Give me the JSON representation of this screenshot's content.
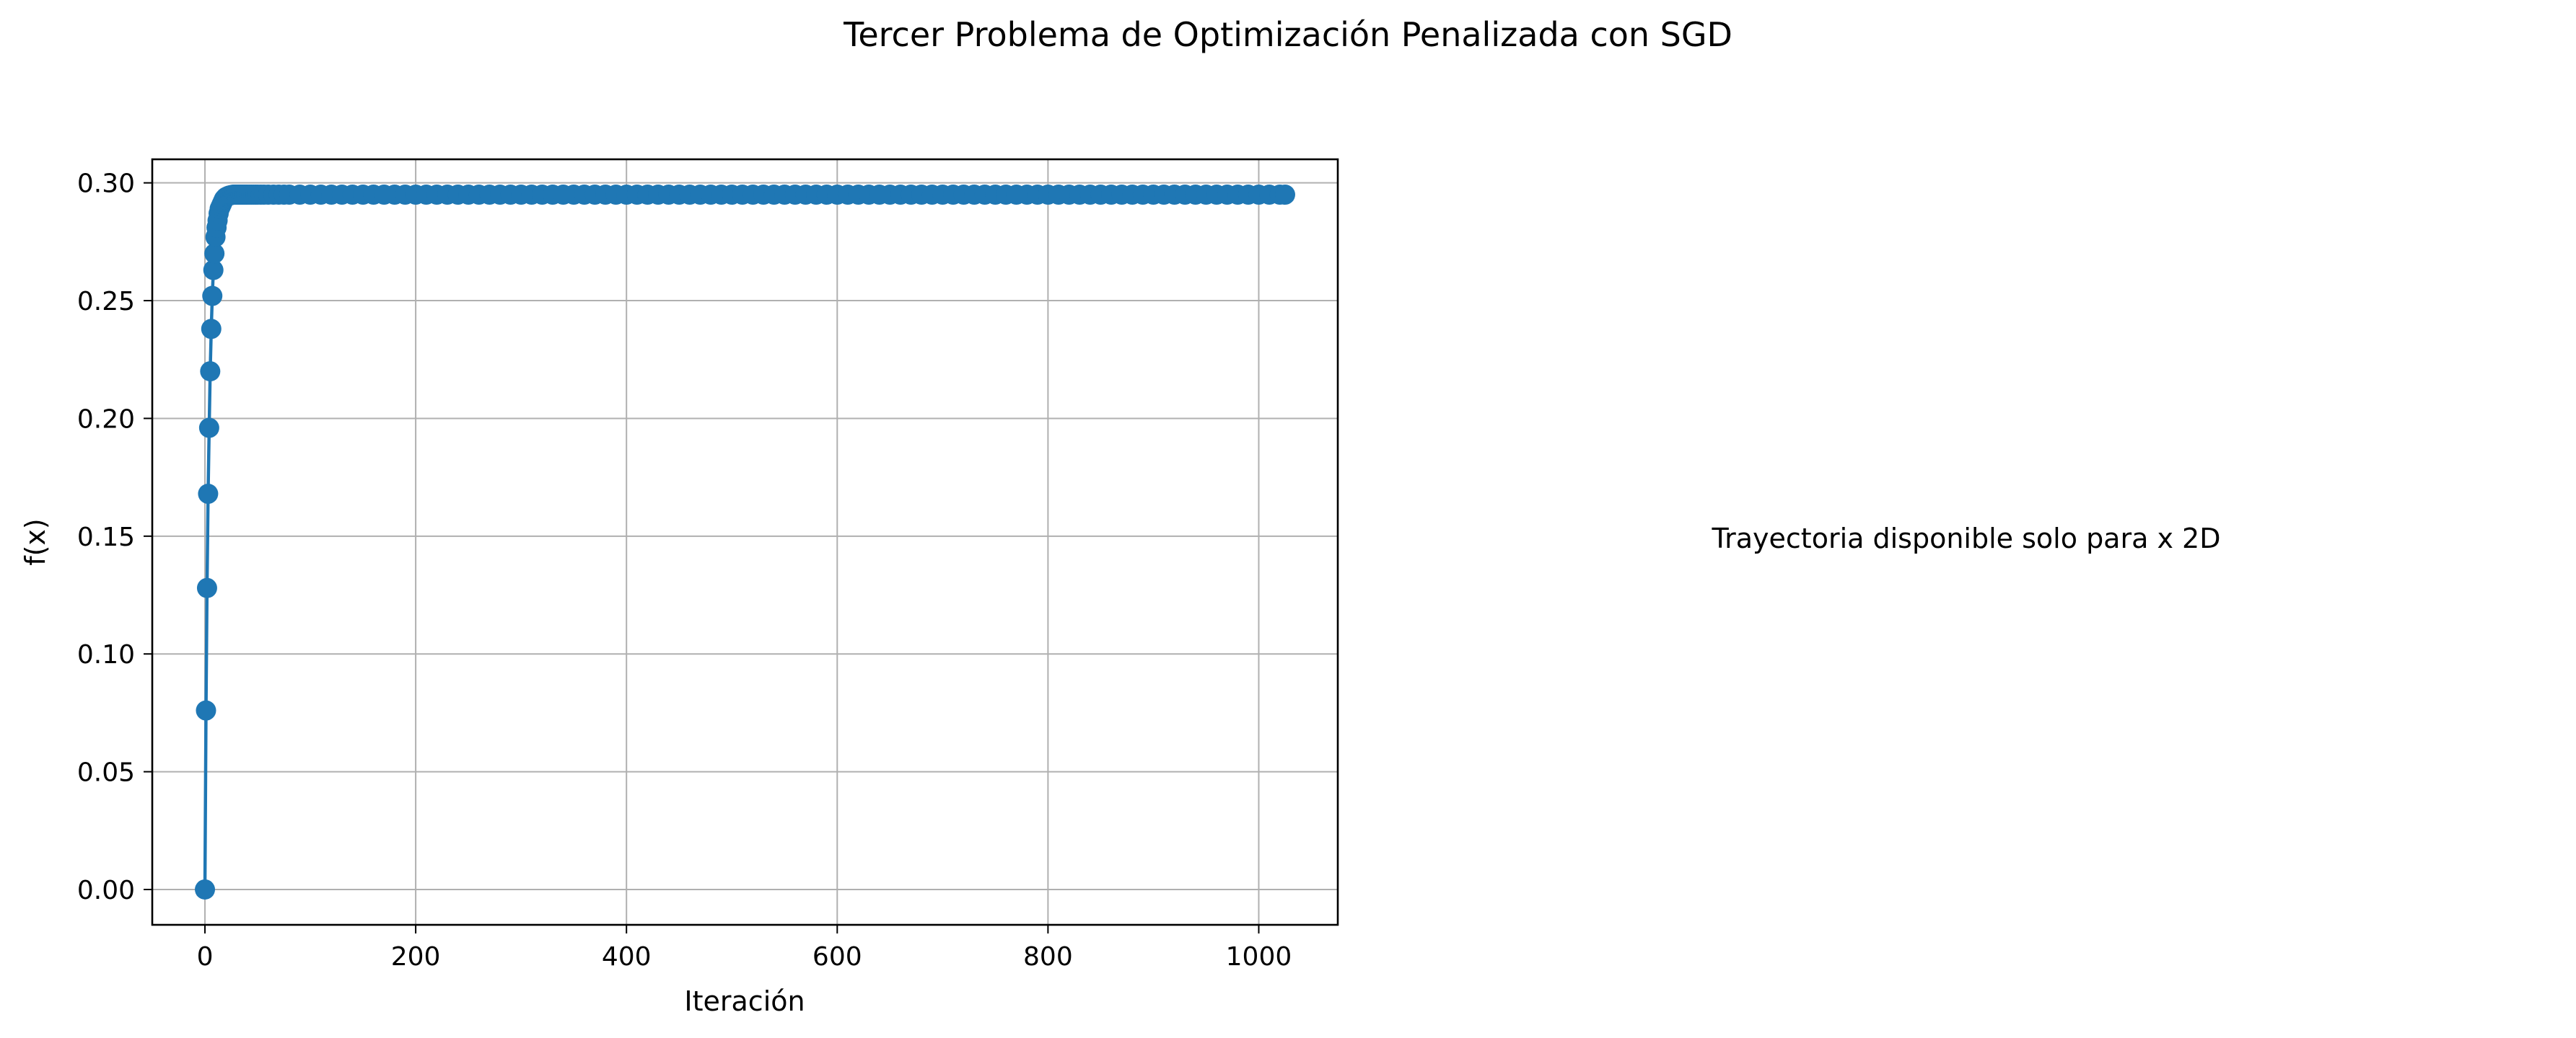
{
  "figure": {
    "title": "Tercer Problema de Optimización Penalizada con SGD",
    "right_panel_text": "Trayectoria disponible solo para x 2D"
  },
  "chart_data": {
    "type": "line",
    "title": "",
    "xlabel": "Iteración",
    "ylabel": "f(x)",
    "xlim": [
      -50,
      1075
    ],
    "ylim": [
      -0.015,
      0.31
    ],
    "xticks": [
      0,
      200,
      400,
      600,
      800,
      1000
    ],
    "xtick_labels": [
      "0",
      "200",
      "400",
      "600",
      "800",
      "1000"
    ],
    "yticks": [
      0.0,
      0.05,
      0.1,
      0.15,
      0.2,
      0.25,
      0.3
    ],
    "ytick_labels": [
      "0.00",
      "0.05",
      "0.10",
      "0.15",
      "0.20",
      "0.25",
      "0.30"
    ],
    "grid": true,
    "legend": false,
    "markers": "circle",
    "line_color": "#1f77b4",
    "series": [
      {
        "x": [
          0,
          1,
          2,
          3,
          4,
          5,
          6,
          7,
          8,
          9,
          10,
          11,
          12,
          13,
          14,
          15,
          16,
          17,
          18,
          19,
          20,
          21,
          22,
          23,
          24,
          25,
          26,
          27,
          28,
          29,
          30,
          31,
          32,
          33,
          34,
          35,
          36,
          37,
          38,
          39,
          40,
          42,
          44,
          46,
          48,
          50,
          53,
          56,
          60,
          65,
          70,
          75,
          80,
          90,
          100,
          110,
          120,
          130,
          140,
          150,
          160,
          170,
          180,
          190,
          200,
          210,
          220,
          230,
          240,
          250,
          260,
          270,
          280,
          290,
          300,
          310,
          320,
          330,
          340,
          350,
          360,
          370,
          380,
          390,
          400,
          410,
          420,
          430,
          440,
          450,
          460,
          470,
          480,
          490,
          500,
          510,
          520,
          530,
          540,
          550,
          560,
          570,
          580,
          590,
          600,
          610,
          620,
          630,
          640,
          650,
          660,
          670,
          680,
          690,
          700,
          710,
          720,
          730,
          740,
          750,
          760,
          770,
          780,
          790,
          800,
          810,
          820,
          830,
          840,
          850,
          860,
          870,
          880,
          890,
          900,
          910,
          920,
          930,
          940,
          950,
          960,
          970,
          980,
          990,
          1000,
          1010,
          1020,
          1025
        ],
        "y": [
          0.0,
          0.076,
          0.128,
          0.168,
          0.196,
          0.22,
          0.238,
          0.252,
          0.263,
          0.27,
          0.277,
          0.281,
          0.284,
          0.287,
          0.289,
          0.29,
          0.291,
          0.292,
          0.293,
          0.2935,
          0.294,
          0.2942,
          0.2944,
          0.2946,
          0.2947,
          0.2948,
          0.2949,
          0.295,
          0.295,
          0.295,
          0.295,
          0.295,
          0.295,
          0.295,
          0.295,
          0.295,
          0.295,
          0.295,
          0.295,
          0.295,
          0.295,
          0.295,
          0.295,
          0.295,
          0.295,
          0.295,
          0.295,
          0.295,
          0.295,
          0.295,
          0.295,
          0.295,
          0.295,
          0.295,
          0.295,
          0.295,
          0.295,
          0.295,
          0.295,
          0.295,
          0.295,
          0.295,
          0.295,
          0.295,
          0.295,
          0.295,
          0.295,
          0.295,
          0.295,
          0.295,
          0.295,
          0.295,
          0.295,
          0.295,
          0.295,
          0.295,
          0.295,
          0.295,
          0.295,
          0.295,
          0.295,
          0.295,
          0.295,
          0.295,
          0.295,
          0.295,
          0.295,
          0.295,
          0.295,
          0.295,
          0.295,
          0.295,
          0.295,
          0.295,
          0.295,
          0.295,
          0.295,
          0.295,
          0.295,
          0.295,
          0.295,
          0.295,
          0.295,
          0.295,
          0.295,
          0.295,
          0.295,
          0.295,
          0.295,
          0.295,
          0.295,
          0.295,
          0.295,
          0.295,
          0.295,
          0.295,
          0.295,
          0.295,
          0.295,
          0.295,
          0.295,
          0.295,
          0.295,
          0.295,
          0.295,
          0.295,
          0.295,
          0.295,
          0.295,
          0.295,
          0.295,
          0.295,
          0.295,
          0.295,
          0.295,
          0.295,
          0.295,
          0.295,
          0.295,
          0.295,
          0.295,
          0.295,
          0.295,
          0.295,
          0.295,
          0.295,
          0.295,
          0.295
        ]
      }
    ]
  }
}
